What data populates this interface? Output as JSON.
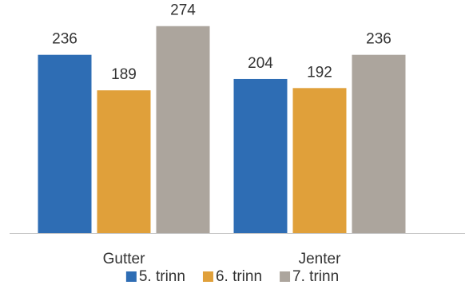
{
  "chart_data": {
    "type": "bar",
    "categories": [
      "Gutter",
      "Jenter"
    ],
    "series": [
      {
        "name": "5. trinn",
        "values": [
          236,
          204
        ],
        "color": "#2e6db4"
      },
      {
        "name": "6. trinn",
        "values": [
          189,
          192
        ],
        "color": "#e0a03a"
      },
      {
        "name": "7. trinn",
        "values": [
          274,
          236
        ],
        "color": "#aca59d"
      }
    ],
    "ylim": [
      0,
      300
    ],
    "grid": false,
    "legend_position": "bottom",
    "data_labels": true,
    "axis_color": "#c8c8c8"
  }
}
